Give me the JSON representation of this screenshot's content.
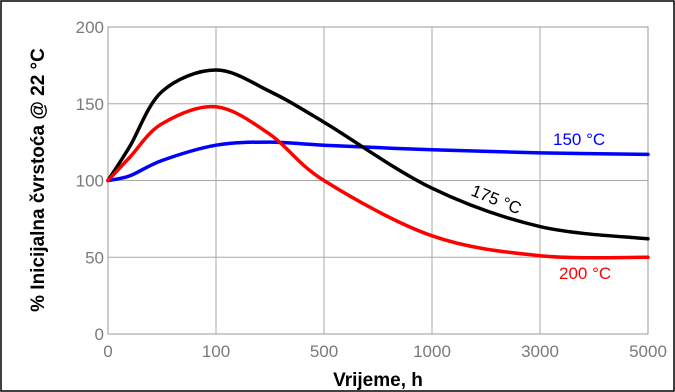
{
  "chart_data": {
    "type": "line",
    "title": "",
    "xlabel": "Vrijeme, h",
    "ylabel": "% Inicijalna čvrstoća @ 22 °C",
    "x_tick_labels": [
      "0",
      "100",
      "500",
      "1000",
      "3000",
      "5000"
    ],
    "y_ticks": [
      0,
      50,
      100,
      150,
      200
    ],
    "ylim": [
      0,
      200
    ],
    "x_scale": "nonlinear (tick labels evenly spaced)",
    "grid": true,
    "legend": "none (series labeled inline)",
    "series": [
      {
        "name": "150 °C",
        "color": "#0000ff",
        "points": [
          {
            "x": 0,
            "y": 100
          },
          {
            "x": 20,
            "y": 103
          },
          {
            "x": 50,
            "y": 113
          },
          {
            "x": 100,
            "y": 123
          },
          {
            "x": 300,
            "y": 125
          },
          {
            "x": 500,
            "y": 123
          },
          {
            "x": 1000,
            "y": 120
          },
          {
            "x": 3000,
            "y": 118
          },
          {
            "x": 5000,
            "y": 117
          }
        ]
      },
      {
        "name": "175 °C",
        "color": "#000000",
        "points": [
          {
            "x": 0,
            "y": 100
          },
          {
            "x": 20,
            "y": 122
          },
          {
            "x": 50,
            "y": 158
          },
          {
            "x": 100,
            "y": 172
          },
          {
            "x": 300,
            "y": 158
          },
          {
            "x": 500,
            "y": 138
          },
          {
            "x": 1000,
            "y": 95
          },
          {
            "x": 3000,
            "y": 70
          },
          {
            "x": 5000,
            "y": 62
          }
        ]
      },
      {
        "name": "200 °C",
        "color": "#ff0000",
        "points": [
          {
            "x": 0,
            "y": 100
          },
          {
            "x": 20,
            "y": 115
          },
          {
            "x": 50,
            "y": 137
          },
          {
            "x": 100,
            "y": 148
          },
          {
            "x": 300,
            "y": 130
          },
          {
            "x": 500,
            "y": 100
          },
          {
            "x": 1000,
            "y": 64
          },
          {
            "x": 3000,
            "y": 51
          },
          {
            "x": 5000,
            "y": 50
          }
        ]
      }
    ]
  }
}
